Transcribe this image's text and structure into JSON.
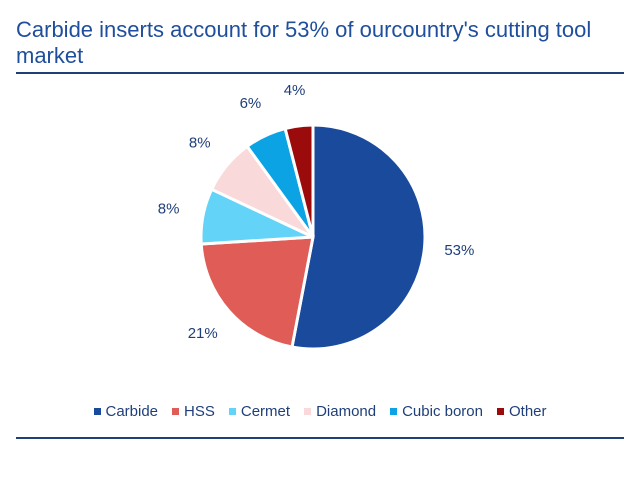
{
  "chart_data": {
    "type": "pie",
    "title": "Carbide inserts account for 53% of ourcountry's cutting tool market",
    "categories": [
      "Carbide",
      "HSS",
      "Cermet",
      "Diamond",
      "Cubic boron",
      "Other"
    ],
    "values": [
      53,
      21,
      8,
      8,
      6,
      4
    ],
    "value_labels": [
      "53%",
      "21%",
      "8%",
      "8%",
      "6%",
      "4%"
    ],
    "colors": [
      "#1a4a9c",
      "#e05c57",
      "#63d3f7",
      "#f9d9da",
      "#0ba3e3",
      "#9c0b0b"
    ],
    "legend": "bottom"
  }
}
